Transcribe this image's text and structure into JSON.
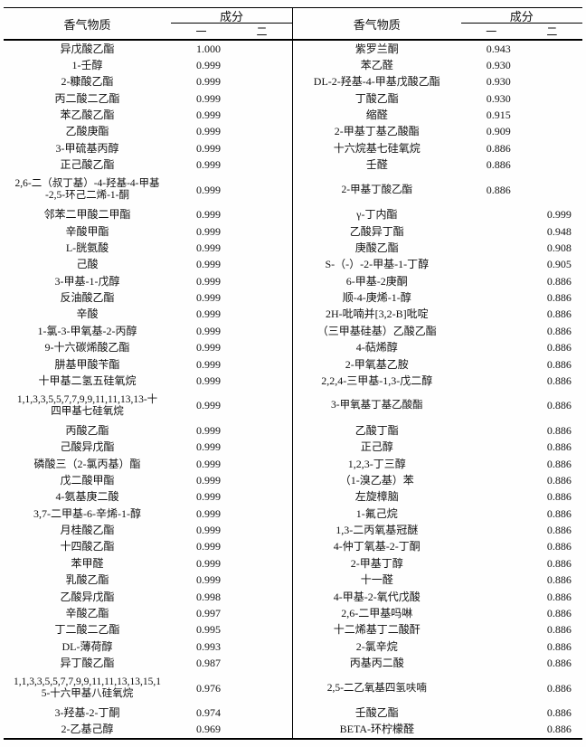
{
  "table": {
    "halves": [
      {
        "name_header": "香气物质",
        "group_header": "成分",
        "subcols": [
          "一",
          "二"
        ],
        "rows": [
          {
            "name": "异戊酸乙酯",
            "c1": "1.000",
            "c2": ""
          },
          {
            "name": "1-壬醇",
            "c1": "0.999",
            "c2": ""
          },
          {
            "name": "2-糠酸乙酯",
            "c1": "0.999",
            "c2": ""
          },
          {
            "name": "丙二酸二乙酯",
            "c1": "0.999",
            "c2": ""
          },
          {
            "name": "苯乙酸乙酯",
            "c1": "0.999",
            "c2": ""
          },
          {
            "name": "乙酸庚酯",
            "c1": "0.999",
            "c2": ""
          },
          {
            "name": "3-甲硫基丙醇",
            "c1": "0.999",
            "c2": ""
          },
          {
            "name": "正己酸乙酯",
            "c1": "0.999",
            "c2": ""
          },
          {
            "name": "2,6-二（叔丁基）-4-羟基-4-甲基\n-2,5-环己二烯-1-酮",
            "c1": "0.999",
            "c2": "",
            "tall": true
          },
          {
            "name": "邻苯二甲酸二甲酯",
            "c1": "0.999",
            "c2": ""
          },
          {
            "name": "辛酸甲酯",
            "c1": "0.999",
            "c2": ""
          },
          {
            "name": "L-胱氨酸",
            "c1": "0.999",
            "c2": ""
          },
          {
            "name": "己酸",
            "c1": "0.999",
            "c2": ""
          },
          {
            "name": "3-甲基-1-戊醇",
            "c1": "0.999",
            "c2": ""
          },
          {
            "name": "反油酸乙酯",
            "c1": "0.999",
            "c2": ""
          },
          {
            "name": "辛酸",
            "c1": "0.999",
            "c2": ""
          },
          {
            "name": "1-氯-3-甲氧基-2-丙醇",
            "c1": "0.999",
            "c2": ""
          },
          {
            "name": "9-十六碳烯酸乙酯",
            "c1": "0.999",
            "c2": ""
          },
          {
            "name": "肼基甲酸苄酯",
            "c1": "0.999",
            "c2": ""
          },
          {
            "name": "十甲基二氢五硅氧烷",
            "c1": "0.999",
            "c2": ""
          },
          {
            "name": "1,1,3,3,5,5,7,7,9,9,11,11,13,13-十\n四甲基七硅氧烷",
            "c1": "0.999",
            "c2": "",
            "tall": true
          },
          {
            "name": "丙酸乙酯",
            "c1": "0.999",
            "c2": ""
          },
          {
            "name": "己酸异戊酯",
            "c1": "0.999",
            "c2": ""
          },
          {
            "name": "磷酸三（2-氯丙基）酯",
            "c1": "0.999",
            "c2": ""
          },
          {
            "name": "戊二酸甲酯",
            "c1": "0.999",
            "c2": ""
          },
          {
            "name": "4-氨基庚二酸",
            "c1": "0.999",
            "c2": ""
          },
          {
            "name": "3,7-二甲基-6-辛烯-1-醇",
            "c1": "0.999",
            "c2": ""
          },
          {
            "name": "月桂酸乙酯",
            "c1": "0.999",
            "c2": ""
          },
          {
            "name": "十四酸乙酯",
            "c1": "0.999",
            "c2": ""
          },
          {
            "name": "苯甲醛",
            "c1": "0.999",
            "c2": ""
          },
          {
            "name": "乳酸乙酯",
            "c1": "0.999",
            "c2": ""
          },
          {
            "name": "乙酸异戊酯",
            "c1": "0.998",
            "c2": ""
          },
          {
            "name": "辛酸乙酯",
            "c1": "0.997",
            "c2": ""
          },
          {
            "name": "丁二酸二乙酯",
            "c1": "0.995",
            "c2": ""
          },
          {
            "name": "DL-薄荷醇",
            "c1": "0.993",
            "c2": ""
          },
          {
            "name": "异丁酸乙酯",
            "c1": "0.987",
            "c2": ""
          },
          {
            "name": "1,1,3,3,5,5,7,7,9,9,11,11,13,13,15,1\n5-十六甲基八硅氧烷",
            "c1": "0.976",
            "c2": "",
            "tall": true
          },
          {
            "name": "3-羟基-2-丁酮",
            "c1": "0.974",
            "c2": ""
          },
          {
            "name": "2-乙基己醇",
            "c1": "0.969",
            "c2": ""
          }
        ]
      },
      {
        "name_header": "香气物质",
        "group_header": "成分",
        "subcols": [
          "一",
          "二"
        ],
        "rows": [
          {
            "name": "紫罗兰酮",
            "c1": "0.943",
            "c2": ""
          },
          {
            "name": "苯乙醛",
            "c1": "0.930",
            "c2": ""
          },
          {
            "name": "DL-2-羟基-4-甲基戊酸乙酯",
            "c1": "0.930",
            "c2": ""
          },
          {
            "name": "丁酸乙酯",
            "c1": "0.930",
            "c2": ""
          },
          {
            "name": "缩醛",
            "c1": "0.915",
            "c2": ""
          },
          {
            "name": "2-甲基丁基乙酸酯",
            "c1": "0.909",
            "c2": ""
          },
          {
            "name": "十六烷基七硅氧烷",
            "c1": "0.886",
            "c2": ""
          },
          {
            "name": "壬醛",
            "c1": "0.886",
            "c2": ""
          },
          {
            "name": "2-甲基丁酸乙酯",
            "c1": "0.886",
            "c2": "",
            "tall": true
          },
          {
            "name": "γ-丁内酯",
            "c1": "",
            "c2": "0.999"
          },
          {
            "name": "乙酸异丁酯",
            "c1": "",
            "c2": "0.948"
          },
          {
            "name": "庚酸乙酯",
            "c1": "",
            "c2": "0.908"
          },
          {
            "name": "S-（-）-2-甲基-1-丁醇",
            "c1": "",
            "c2": "0.905"
          },
          {
            "name": "6-甲基-2庚酮",
            "c1": "",
            "c2": "0.886"
          },
          {
            "name": "顺-4-庚烯-1-醇",
            "c1": "",
            "c2": "0.886"
          },
          {
            "name": "2H-吡喃并[3,2-B]吡啶",
            "c1": "",
            "c2": "0.886"
          },
          {
            "name": "（三甲基硅基）乙酸乙酯",
            "c1": "",
            "c2": "0.886"
          },
          {
            "name": "4-萜烯醇",
            "c1": "",
            "c2": "0.886"
          },
          {
            "name": "2-甲氧基乙胺",
            "c1": "",
            "c2": "0.886"
          },
          {
            "name": "2,2,4-三甲基-1,3-戊二醇",
            "c1": "",
            "c2": "0.886"
          },
          {
            "name": "3-甲氧基丁基乙酸酯",
            "c1": "",
            "c2": "0.886",
            "tall": true
          },
          {
            "name": "乙酸丁酯",
            "c1": "",
            "c2": "0.886"
          },
          {
            "name": "正己醇",
            "c1": "",
            "c2": "0.886"
          },
          {
            "name": "1,2,3-丁三醇",
            "c1": "",
            "c2": "0.886"
          },
          {
            "name": "（1-溴乙基）苯",
            "c1": "",
            "c2": "0.886"
          },
          {
            "name": "左旋樟脑",
            "c1": "",
            "c2": "0.886"
          },
          {
            "name": "1-氟己烷",
            "c1": "",
            "c2": "0.886"
          },
          {
            "name": "1,3-二丙氧基冠醚",
            "c1": "",
            "c2": "0.886"
          },
          {
            "name": "4-仲丁氧基-2-丁酮",
            "c1": "",
            "c2": "0.886"
          },
          {
            "name": "2-甲基丁醇",
            "c1": "",
            "c2": "0.886"
          },
          {
            "name": "十一醛",
            "c1": "",
            "c2": "0.886"
          },
          {
            "name": "4-甲基-2-氧代戊酸",
            "c1": "",
            "c2": "0.886"
          },
          {
            "name": "2,6-二甲基吗啉",
            "c1": "",
            "c2": "0.886"
          },
          {
            "name": "十二烯基丁二酸酐",
            "c1": "",
            "c2": "0.886"
          },
          {
            "name": "2-氯辛烷",
            "c1": "",
            "c2": "0.886"
          },
          {
            "name": "丙基丙二酸",
            "c1": "",
            "c2": "0.886"
          },
          {
            "name": "2,5-二乙氧基四氢呋喃",
            "c1": "",
            "c2": "0.886",
            "tall": true
          },
          {
            "name": "壬酸乙酯",
            "c1": "",
            "c2": "0.886"
          },
          {
            "name": "BETA-环柠檬醛",
            "c1": "",
            "c2": "0.886"
          }
        ]
      }
    ]
  }
}
